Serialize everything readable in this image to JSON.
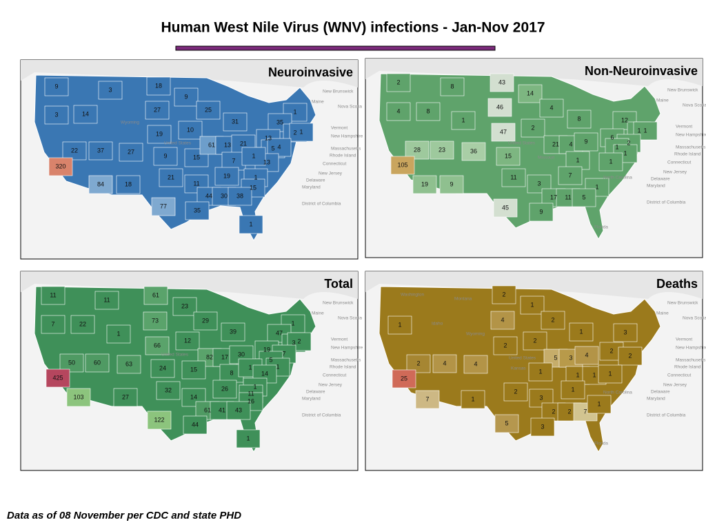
{
  "title": "Human West Nile Virus (WNV) infections - Jan-Nov 2017",
  "footnote": "Data as of 08 November per CDC and state PHD",
  "maps": [
    {
      "title": "Neuroinvasive",
      "values": [
        9,
        3,
        18,
        9,
        3,
        14,
        27,
        25,
        31,
        1,
        35,
        2,
        1,
        19,
        10,
        22,
        37,
        27,
        9,
        15,
        61,
        13,
        21,
        13,
        5,
        4,
        13,
        7,
        1,
        320,
        21,
        11,
        19,
        1,
        15,
        84,
        18,
        44,
        30,
        38,
        77,
        35,
        1
      ],
      "colors": [
        "#3a77b3",
        "#3a77b3",
        "#3a77b3",
        "#3a77b3",
        "#3a77b3",
        "#3a77b3",
        "#3a77b3",
        "#3a77b3",
        "#3a77b3",
        "#3a77b3",
        "#3a77b3",
        "#3a77b3",
        "#3a77b3",
        "#3a77b3",
        "#3a77b3",
        "#3a77b3",
        "#3a77b3",
        "#3a77b3",
        "#3a77b3",
        "#3a77b3",
        "#6d9ecb",
        "#3a77b3",
        "#3a77b3",
        "#3a77b3",
        "#3a77b3",
        "#3a77b3",
        "#3a77b3",
        "#3a77b3",
        "#3a77b3",
        "#d9836b",
        "#3a77b3",
        "#3a77b3",
        "#3a77b3",
        "#3a77b3",
        "#3a77b3",
        "#7fa9d0",
        "#3a77b3",
        "#3a77b3",
        "#3a77b3",
        "#3a77b3",
        "#7fa9d0",
        "#3a77b3",
        "#3a77b3"
      ],
      "places": [
        "Maine",
        "New Brunswick",
        "Nova Scotia",
        "Vermont",
        "New Hampshire",
        "Massachusetts",
        "Rhode Island",
        "Connecticut",
        "New Jersey",
        "Delaware",
        "Maryland",
        "District of Columbia",
        "Wyoming",
        "United States"
      ]
    },
    {
      "title": "Non-Neuroinvasive",
      "values": [
        2,
        8,
        43,
        14,
        4,
        8,
        46,
        4,
        8,
        12,
        1,
        1,
        1,
        47,
        2,
        28,
        23,
        36,
        15,
        21,
        4,
        9,
        6,
        2,
        1,
        1,
        1,
        1,
        105,
        11,
        3,
        7,
        1,
        17,
        11,
        5,
        19,
        9,
        45,
        9
      ],
      "colors": [
        "#5fa36b",
        "#5fa36b",
        "#d3dfd0",
        "#7db681",
        "#5fa36b",
        "#5fa36b",
        "#d3dfd0",
        "#5fa36b",
        "#5fa36b",
        "#5fa36b",
        "#5fa36b",
        "#5fa36b",
        "#5fa36b",
        "#d3dfd0",
        "#5fa36b",
        "#9ec99d",
        "#9ec99d",
        "#a9cea6",
        "#7db681",
        "#5fa36b",
        "#5fa36b",
        "#5fa36b",
        "#5fa36b",
        "#5fa36b",
        "#5fa36b",
        "#5fa36b",
        "#5fa36b",
        "#5fa36b",
        "#c9a55e",
        "#5fa36b",
        "#5fa36b",
        "#5fa36b",
        "#5fa36b",
        "#5fa36b",
        "#5fa36b",
        "#5fa36b",
        "#8fc08f",
        "#8fc08f",
        "#d3dfd0",
        "#5fa36b"
      ],
      "places": [
        "Maine",
        "New Brunswick",
        "Nova Scotia",
        "Vermont",
        "New Hampshire",
        "Massachusetts",
        "Rhode Island",
        "Connecticut",
        "New Jersey",
        "Delaware",
        "Maryland",
        "District of Columbia",
        "Missouri",
        "United States",
        "North Carolina",
        "Florida"
      ]
    },
    {
      "title": "Total",
      "values": [
        11,
        11,
        61,
        23,
        7,
        22,
        73,
        29,
        39,
        1,
        47,
        3,
        2,
        1,
        66,
        12,
        19,
        7,
        50,
        60,
        63,
        24,
        82,
        17,
        30,
        5,
        1,
        15,
        8,
        1,
        14,
        425,
        32,
        26,
        1,
        11,
        14,
        16,
        103,
        27,
        61,
        41,
        43,
        122,
        44,
        1
      ],
      "colors": [
        "#3f9059",
        "#3f9059",
        "#5aa36b",
        "#3f9059",
        "#3f9059",
        "#3f9059",
        "#5aa36b",
        "#3f9059",
        "#3f9059",
        "#3f9059",
        "#3f9059",
        "#3f9059",
        "#3f9059",
        "#3f9059",
        "#5aa36b",
        "#3f9059",
        "#3f9059",
        "#3f9059",
        "#4f9a63",
        "#4f9a63",
        "#4f9a63",
        "#3f9059",
        "#5aa36b",
        "#3f9059",
        "#3f9059",
        "#3f9059",
        "#3f9059",
        "#3f9059",
        "#3f9059",
        "#3f9059",
        "#3f9059",
        "#b5465e",
        "#3f9059",
        "#3f9059",
        "#3f9059",
        "#3f9059",
        "#3f9059",
        "#3f9059",
        "#8cc47d",
        "#3f9059",
        "#4f9a63",
        "#3f9059",
        "#3f9059",
        "#8cc47d",
        "#3f9059",
        "#3f9059"
      ],
      "places": [
        "Maine",
        "New Brunswick",
        "Nova Scotia",
        "Vermont",
        "New Hampshire",
        "Massachusetts",
        "Rhode Island",
        "Connecticut",
        "New Jersey",
        "Delaware",
        "Maryland",
        "District of Columbia",
        "United States"
      ]
    },
    {
      "title": "Deaths",
      "values": [
        2,
        1,
        4,
        2,
        1,
        2,
        4,
        4,
        2,
        2,
        1,
        3,
        25,
        5,
        3,
        4,
        2,
        2,
        1,
        1,
        1,
        1,
        2,
        3,
        1,
        7,
        1,
        2,
        2,
        7,
        1,
        5,
        3
      ],
      "colors": [
        "#9b7a1c",
        "#9b7a1c",
        "#b39447",
        "#9b7a1c",
        "#9b7a1c",
        "#a68632",
        "#b39447",
        "#b39447",
        "#9b7a1c",
        "#9b7a1c",
        "#9b7a1c",
        "#9b7a1c",
        "#d06a58",
        "#c6ad6a",
        "#b89a4a",
        "#b39447",
        "#9b7a1c",
        "#9b7a1c",
        "#9b7a1c",
        "#9b7a1c",
        "#9b7a1c",
        "#9b7a1c",
        "#9b7a1c",
        "#9b7a1c",
        "#9b7a1c",
        "#cdb884",
        "#9b7a1c",
        "#9b7a1c",
        "#9b7a1c",
        "#d2c490",
        "#9b7a1c",
        "#b5974e",
        "#9b7a1c"
      ],
      "places": [
        "Maine",
        "New Brunswick",
        "Nova Scotia",
        "Vermont",
        "New Hampshire",
        "Massachusetts",
        "Rhode Island",
        "Connecticut",
        "New Jersey",
        "Delaware",
        "Maryland",
        "District of Columbia",
        "Washington",
        "Montana",
        "Idaho",
        "Wyoming",
        "United States",
        "Kansas",
        "North Carolina",
        "Florida"
      ]
    }
  ]
}
